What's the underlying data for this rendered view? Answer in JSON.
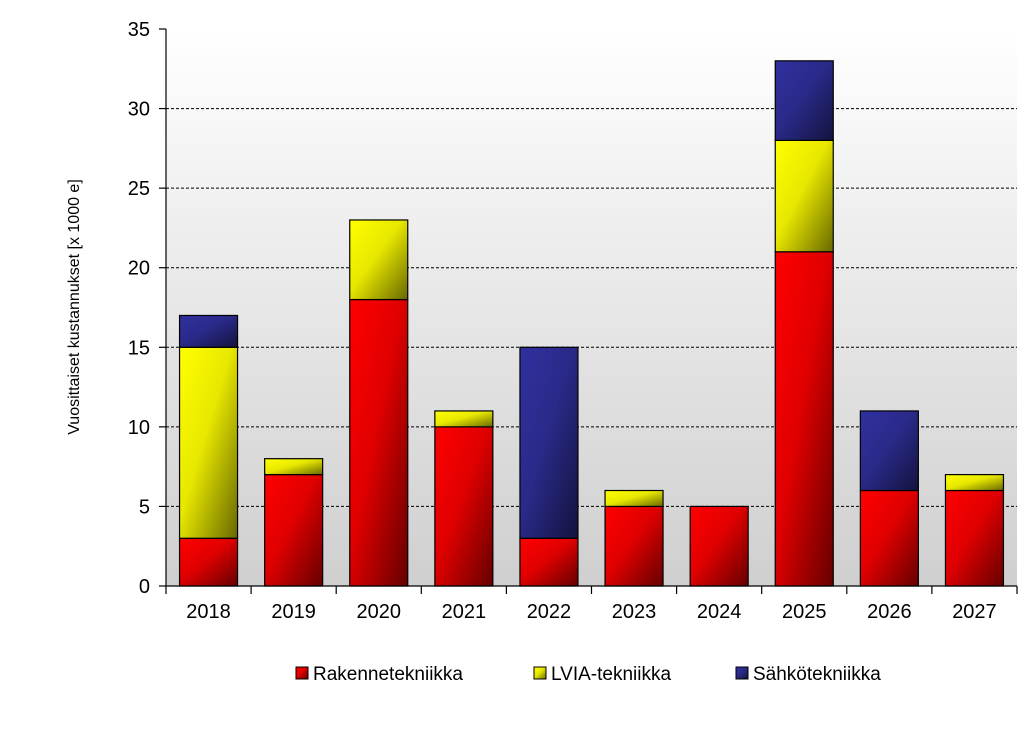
{
  "chart_data": {
    "type": "bar",
    "stacked": true,
    "categories": [
      "2018",
      "2019",
      "2020",
      "2021",
      "2022",
      "2023",
      "2024",
      "2025",
      "2026",
      "2027"
    ],
    "series": [
      {
        "name": "Rakennetekniikka",
        "color": "#e00000",
        "values": [
          3,
          7,
          18,
          10,
          3,
          5,
          5,
          21,
          6,
          6
        ]
      },
      {
        "name": "LVIA-tekniikka",
        "color": "#e8e800",
        "values": [
          12,
          1,
          5,
          1,
          0,
          1,
          0,
          7,
          0,
          1
        ]
      },
      {
        "name": "Sähkötekniikka",
        "color": "#2a2a8a",
        "values": [
          2,
          0,
          0,
          0,
          12,
          0,
          0,
          5,
          5,
          0
        ]
      }
    ],
    "ylabel": "Vuosittaiset kustannukset [x 1000 e]",
    "ylim": [
      0,
      35
    ],
    "yticks": [
      0,
      5,
      10,
      15,
      20,
      25,
      30,
      35
    ],
    "grid": true,
    "legend_position": "bottom"
  }
}
